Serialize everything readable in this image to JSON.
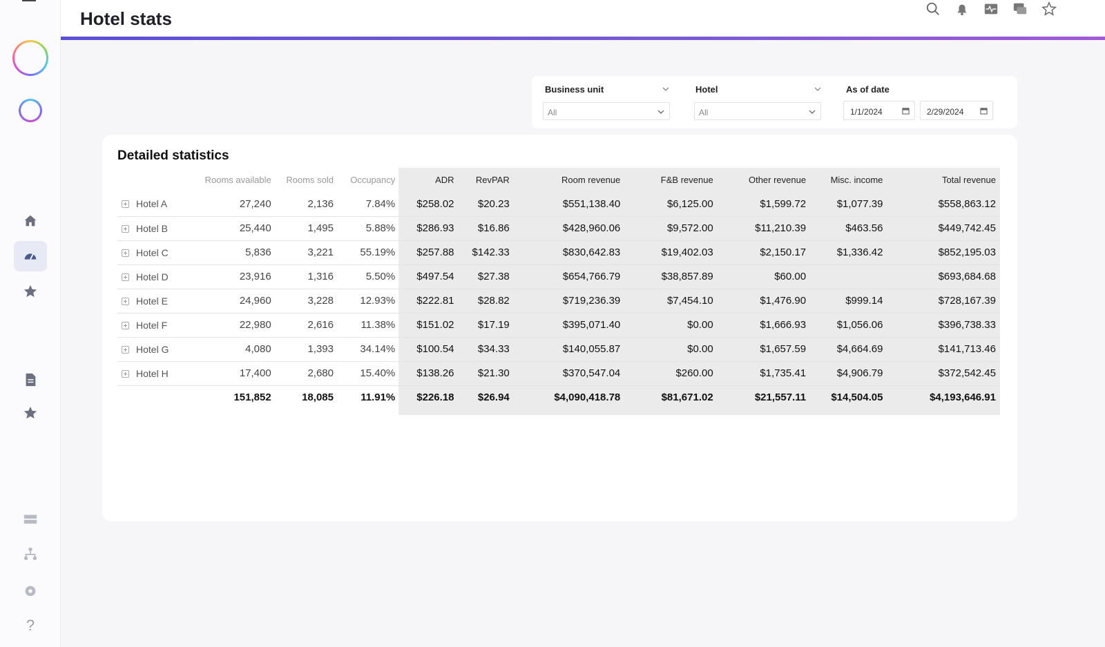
{
  "header": {
    "title": "Hotel stats"
  },
  "sidebar": {
    "nav": [
      {
        "icon": "home-icon"
      },
      {
        "icon": "dashboard-icon",
        "active": true
      },
      {
        "icon": "star-icon"
      },
      {
        "icon": "document-icon"
      },
      {
        "icon": "star-icon"
      },
      {
        "icon": "network-icon"
      },
      {
        "icon": "org-chart-icon"
      },
      {
        "icon": "settings-icon"
      },
      {
        "icon": "help-icon",
        "glyph": "?"
      }
    ]
  },
  "topbar_icons": [
    "search-icon",
    "bell-icon",
    "activity-icon",
    "chat-icon",
    "star-outline-icon"
  ],
  "filters": {
    "business_unit": {
      "label": "Business unit",
      "value": "All"
    },
    "hotel": {
      "label": "Hotel",
      "value": "All"
    },
    "as_of_date": {
      "label": "As of date",
      "start": "1/1/2024",
      "end": "2/29/2024"
    }
  },
  "stats": {
    "title": "Detailed statistics",
    "columns": [
      "",
      "Rooms available",
      "Rooms sold",
      "Occupancy",
      "ADR",
      "RevPAR",
      "Room revenue",
      "F&B revenue",
      "Other revenue",
      "Misc. income",
      "Total revenue"
    ],
    "rows": [
      [
        "Hotel A",
        "27,240",
        "2,136",
        "7.84%",
        "$258.02",
        "$20.23",
        "$551,138.40",
        "$6,125.00",
        "$1,599.72",
        "$1,077.39",
        "$558,863.12"
      ],
      [
        "Hotel B",
        "25,440",
        "1,495",
        "5.88%",
        "$286.93",
        "$16.86",
        "$428,960.06",
        "$9,572.00",
        "$11,210.39",
        "$463.56",
        "$449,742.45"
      ],
      [
        "Hotel C",
        "5,836",
        "3,221",
        "55.19%",
        "$257.88",
        "$142.33",
        "$830,642.83",
        "$19,402.03",
        "$2,150.17",
        "$1,336.42",
        "$852,195.03"
      ],
      [
        "Hotel D",
        "23,916",
        "1,316",
        "5.50%",
        "$497.54",
        "$27.38",
        "$654,766.79",
        "$38,857.89",
        "$60.00",
        "",
        "$693,684.68"
      ],
      [
        "Hotel E",
        "24,960",
        "3,228",
        "12.93%",
        "$222.81",
        "$28.82",
        "$719,236.39",
        "$7,454.10",
        "$1,476.90",
        "$999.14",
        "$728,167.39"
      ],
      [
        "Hotel F",
        "22,980",
        "2,616",
        "11.38%",
        "$151.02",
        "$17.19",
        "$395,071.40",
        "$0.00",
        "$1,666.93",
        "$1,056.06",
        "$396,738.33"
      ],
      [
        "Hotel G",
        "4,080",
        "1,393",
        "34.14%",
        "$100.54",
        "$34.33",
        "$140,055.87",
        "$0.00",
        "$1,657.59",
        "$4,664.69",
        "$141,713.46"
      ],
      [
        "Hotel H",
        "17,400",
        "2,680",
        "15.40%",
        "$138.26",
        "$21.30",
        "$370,547.04",
        "$260.00",
        "$1,735.41",
        "$4,906.79",
        "$372,542.45"
      ]
    ],
    "totals": [
      "",
      "151,852",
      "18,085",
      "11.91%",
      "$226.18",
      "$26.94",
      "$4,090,418.78",
      "$81,671.02",
      "$21,557.11",
      "$14,504.05",
      "$4,193,646.91"
    ]
  }
}
